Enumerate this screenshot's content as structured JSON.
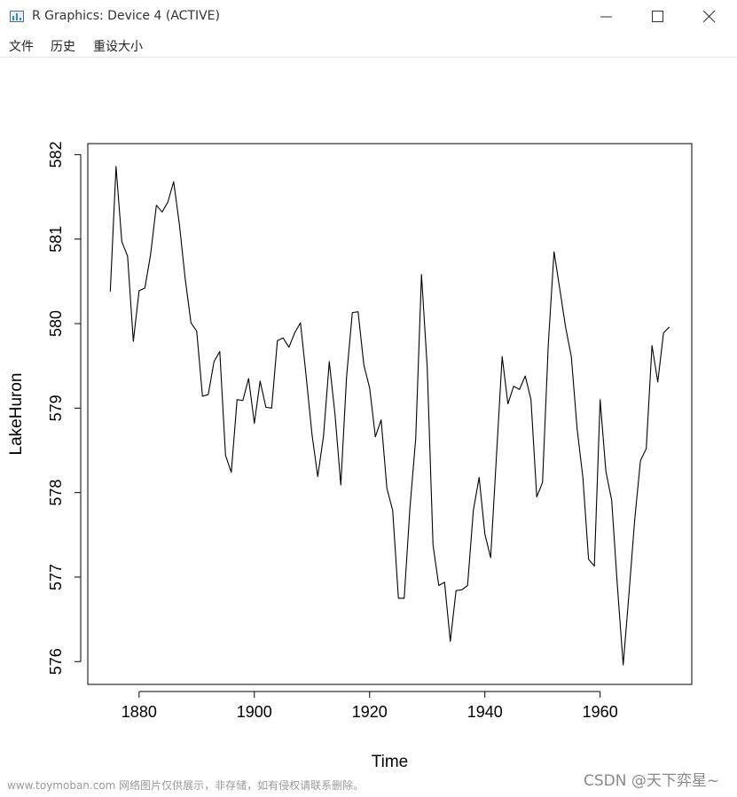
{
  "window": {
    "title": "R Graphics: Device 4 (ACTIVE)",
    "icon": "r-graphics-icon",
    "controls": [
      "minimize-icon",
      "maximize-icon",
      "close-icon"
    ]
  },
  "menu": {
    "items": [
      "文件",
      "历史",
      "重设大小"
    ]
  },
  "chart_data": {
    "type": "line",
    "xlabel": "Time",
    "ylabel": "LakeHuron",
    "x_start": 1875,
    "x_end": 1972,
    "xlim": [
      1871.1,
      1975.9
    ],
    "ylim": [
      575.73,
      582.13
    ],
    "xticks": [
      1880,
      1900,
      1920,
      1940,
      1960
    ],
    "yticks": [
      576,
      577,
      578,
      579,
      580,
      581,
      582
    ],
    "grid": false,
    "series": [
      {
        "values": [
          580.38,
          581.86,
          580.97,
          580.8,
          579.79,
          580.39,
          580.42,
          580.82,
          581.4,
          581.32,
          581.44,
          581.68,
          581.17,
          580.53,
          580.01,
          579.91,
          579.14,
          579.16,
          579.55,
          579.67,
          578.44,
          578.24,
          579.1,
          579.09,
          579.35,
          578.82,
          579.32,
          579.01,
          579.0,
          579.8,
          579.83,
          579.72,
          579.89,
          580.01,
          579.37,
          578.69,
          578.19,
          578.67,
          579.55,
          578.92,
          578.09,
          579.37,
          580.13,
          580.14,
          579.51,
          579.24,
          578.66,
          578.86,
          578.05,
          577.79,
          576.75,
          576.75,
          577.82,
          578.64,
          580.58,
          579.48,
          577.38,
          576.9,
          576.94,
          576.24,
          576.84,
          576.85,
          576.9,
          577.79,
          578.18,
          577.51,
          577.23,
          578.42,
          579.61,
          579.05,
          579.26,
          579.22,
          579.38,
          579.1,
          577.95,
          578.12,
          579.75,
          580.85,
          580.41,
          579.96,
          579.61,
          578.76,
          578.18,
          577.21,
          577.13,
          579.1,
          578.25,
          577.91,
          576.89,
          575.96,
          576.8,
          577.68,
          578.38,
          578.52,
          579.74,
          579.31,
          579.89,
          579.96
        ]
      }
    ]
  },
  "footer": {
    "watermark": "www.toymoban.com 网络图片仅供展示，非存储，如有侵权请联系删除。",
    "credit": "CSDN @天下弈星~"
  }
}
